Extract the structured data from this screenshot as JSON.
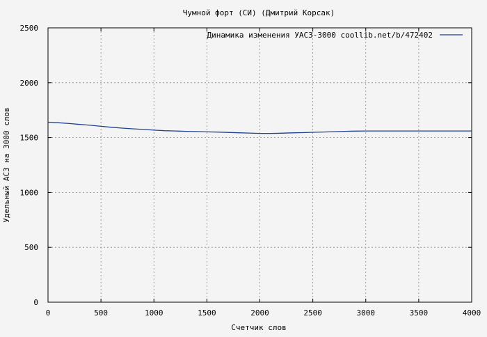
{
  "chart_data": {
    "type": "line",
    "title": "Чумной форт (СИ) (Дмитрий Корсак)",
    "xlabel": "Счетчик слов",
    "ylabel": "Удельный АСЗ на 3000 слов",
    "xlim": [
      0,
      4000
    ],
    "ylim": [
      0,
      2500
    ],
    "x_ticks": [
      "0",
      "500",
      "1000",
      "1500",
      "2000",
      "2500",
      "3000",
      "3500",
      "4000"
    ],
    "y_ticks": [
      "0",
      "500",
      "1000",
      "1500",
      "2000",
      "2500"
    ],
    "grid": true,
    "legend_position": "top-right",
    "series": [
      {
        "name": "Динамика изменения УАСЗ-3000  coollib.net/b/472402",
        "color": "#1f3f8f",
        "points": [
          [
            0,
            1640
          ],
          [
            100,
            1635
          ],
          [
            200,
            1628
          ],
          [
            300,
            1620
          ],
          [
            400,
            1612
          ],
          [
            500,
            1603
          ],
          [
            600,
            1594
          ],
          [
            700,
            1586
          ],
          [
            800,
            1580
          ],
          [
            900,
            1574
          ],
          [
            1000,
            1568
          ],
          [
            1100,
            1563
          ],
          [
            1200,
            1560
          ],
          [
            1300,
            1557
          ],
          [
            1400,
            1555
          ],
          [
            1500,
            1552
          ],
          [
            1600,
            1550
          ],
          [
            1700,
            1547
          ],
          [
            1800,
            1544
          ],
          [
            1900,
            1541
          ],
          [
            2000,
            1538
          ],
          [
            2100,
            1538
          ],
          [
            2200,
            1540
          ],
          [
            2300,
            1543
          ],
          [
            2400,
            1545
          ],
          [
            2500,
            1548
          ],
          [
            2600,
            1551
          ],
          [
            2700,
            1554
          ],
          [
            2800,
            1557
          ],
          [
            2900,
            1559
          ],
          [
            3000,
            1560
          ],
          [
            3200,
            1560
          ],
          [
            3400,
            1560
          ],
          [
            3600,
            1560
          ],
          [
            3800,
            1560
          ],
          [
            4000,
            1560
          ]
        ]
      }
    ]
  }
}
